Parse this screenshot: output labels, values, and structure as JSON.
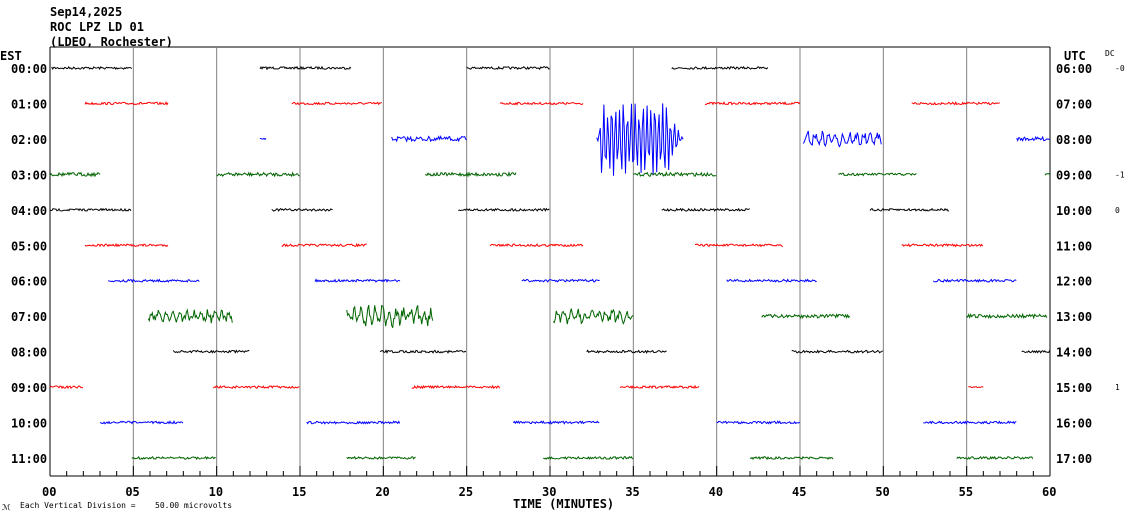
{
  "header": {
    "date": "Sep14,2025",
    "station": "ROC LPZ LD 01",
    "network": "(LDEO, Rochester)"
  },
  "left_zone": "EST",
  "right_zone": "UTC",
  "dc_label": "DC",
  "footer": {
    "mark": "ℳ",
    "scale_label": "Each Vertical Division =",
    "scale_value": "50.00 microvolts"
  },
  "chart_data": {
    "type": "line",
    "subtype": "helicorder",
    "xlabel": "TIME (MINUTES)",
    "xlim": [
      0,
      60
    ],
    "x_ticks": [
      "00",
      "05",
      "10",
      "15",
      "20",
      "25",
      "30",
      "35",
      "40",
      "45",
      "50",
      "55",
      "60"
    ],
    "grid": "vertical every 5 minutes",
    "colors": [
      "#000000",
      "#ff0000",
      "#0000ff",
      "#006400"
    ],
    "rows": [
      {
        "est": "00:00",
        "utc": "06:00",
        "dc": "-0",
        "color": "#000000",
        "segments": [
          [
            0.1,
            4.9,
            2
          ],
          [
            12.6,
            18.1,
            2
          ],
          [
            25,
            30,
            2
          ],
          [
            37.3,
            43.1,
            2
          ]
        ]
      },
      {
        "est": "01:00",
        "utc": "07:00",
        "dc": "",
        "color": "#ff0000",
        "segments": [
          [
            2.1,
            7.1,
            2
          ],
          [
            14.5,
            19.9,
            2
          ],
          [
            27,
            32,
            2
          ],
          [
            39.3,
            45,
            2
          ],
          [
            51.7,
            57,
            2
          ]
        ]
      },
      {
        "est": "02:00",
        "utc": "08:00",
        "dc": "",
        "color": "#0000ff",
        "segments": [
          [
            12.6,
            13,
            1
          ],
          [
            20.5,
            25,
            4
          ],
          [
            32.8,
            38,
            38
          ],
          [
            45.2,
            49.9,
            7
          ],
          [
            58,
            60,
            3
          ]
        ]
      },
      {
        "est": "03:00",
        "utc": "09:00",
        "dc": "-1",
        "color": "#006400",
        "segments": [
          [
            0,
            3,
            3
          ],
          [
            10,
            15,
            3
          ],
          [
            22.5,
            28,
            3
          ],
          [
            35,
            40,
            3
          ],
          [
            47.3,
            52,
            2
          ],
          [
            59.7,
            60,
            2
          ]
        ]
      },
      {
        "est": "04:00",
        "utc": "10:00",
        "dc": "0",
        "color": "#000000",
        "segments": [
          [
            0,
            4.9,
            2
          ],
          [
            13.3,
            17,
            2
          ],
          [
            24.5,
            30,
            2
          ],
          [
            36.7,
            42,
            2
          ],
          [
            49.2,
            54,
            2
          ]
        ]
      },
      {
        "est": "05:00",
        "utc": "11:00",
        "dc": "",
        "color": "#ff0000",
        "segments": [
          [
            2.1,
            7.1,
            2
          ],
          [
            13.9,
            19,
            2
          ],
          [
            26.4,
            32,
            2
          ],
          [
            38.7,
            44,
            2
          ],
          [
            51.1,
            56,
            2
          ]
        ]
      },
      {
        "est": "06:00",
        "utc": "12:00",
        "dc": "",
        "color": "#0000ff",
        "segments": [
          [
            3.5,
            9,
            2
          ],
          [
            15.9,
            21,
            2
          ],
          [
            28.3,
            33,
            2
          ],
          [
            40.6,
            46,
            2
          ],
          [
            53,
            58,
            2
          ]
        ]
      },
      {
        "est": "07:00",
        "utc": "13:00",
        "dc": "",
        "color": "#006400",
        "segments": [
          [
            5.9,
            11,
            6
          ],
          [
            17.8,
            23,
            10
          ],
          [
            30.2,
            35,
            7
          ],
          [
            42.7,
            48,
            3
          ],
          [
            55,
            59.8,
            3
          ]
        ]
      },
      {
        "est": "08:00",
        "utc": "14:00",
        "dc": "",
        "color": "#000000",
        "segments": [
          [
            7.4,
            12,
            2
          ],
          [
            19.8,
            25,
            2
          ],
          [
            32.2,
            37,
            2
          ],
          [
            44.5,
            50,
            2
          ],
          [
            58.3,
            60,
            2
          ]
        ]
      },
      {
        "est": "09:00",
        "utc": "15:00",
        "dc": "1",
        "color": "#ff0000",
        "segments": [
          [
            0,
            2,
            2
          ],
          [
            9.8,
            15,
            2
          ],
          [
            21.7,
            27,
            2
          ],
          [
            34.2,
            39,
            2
          ],
          [
            55.1,
            56,
            1
          ]
        ]
      },
      {
        "est": "10:00",
        "utc": "16:00",
        "dc": "",
        "color": "#0000ff",
        "segments": [
          [
            3,
            8,
            2
          ],
          [
            15.4,
            21,
            2
          ],
          [
            27.8,
            33,
            2
          ],
          [
            40,
            45,
            2
          ],
          [
            52.4,
            58,
            2
          ]
        ]
      },
      {
        "est": "11:00",
        "utc": "17:00",
        "dc": "",
        "color": "#006400",
        "segments": [
          [
            4.9,
            10,
            2
          ],
          [
            17.8,
            22,
            2
          ],
          [
            29.6,
            35,
            2
          ],
          [
            42,
            47,
            2
          ],
          [
            54.4,
            59,
            2
          ]
        ]
      }
    ]
  }
}
